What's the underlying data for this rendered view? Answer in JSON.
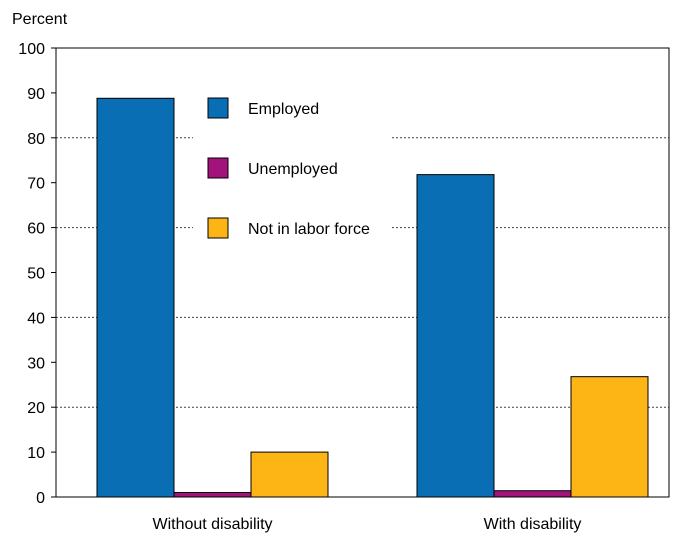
{
  "chart_data": {
    "type": "bar",
    "ylabel": "Percent",
    "ylim": [
      0,
      100
    ],
    "yticks": [
      0,
      10,
      20,
      30,
      40,
      50,
      60,
      70,
      80,
      90,
      100
    ],
    "grid": true,
    "legend_position": "top-center",
    "categories": [
      "Without disability",
      "With disability"
    ],
    "series": [
      {
        "name": "Employed",
        "values": [
          88.8,
          71.8
        ],
        "color": "#0a6eb4"
      },
      {
        "name": "Unemployed",
        "values": [
          1.0,
          1.4
        ],
        "color": "#a3137c"
      },
      {
        "name": "Not in labor force",
        "values": [
          10.0,
          26.8
        ],
        "color": "#fdb515"
      }
    ]
  }
}
